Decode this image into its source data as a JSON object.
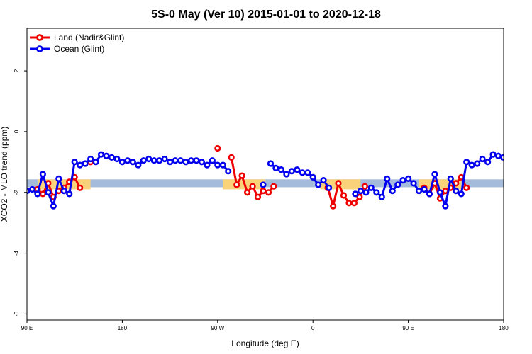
{
  "chart_data": {
    "type": "line",
    "title": "5S-0 May (Ver 10)   2015-01-01 to 2020-12-18",
    "xlabel": "Longitude (deg E)",
    "ylabel": "XCO2 - MLO trend (ppm)",
    "xlim": [
      90,
      540
    ],
    "ylim": [
      -6.2,
      3.4
    ],
    "x_ticks": [
      {
        "value": 90,
        "label": "90 E"
      },
      {
        "value": 180,
        "label": "180"
      },
      {
        "value": 270,
        "label": "90 W"
      },
      {
        "value": 360,
        "label": "0"
      },
      {
        "value": 450,
        "label": "90 E"
      },
      {
        "value": 540,
        "label": "180"
      }
    ],
    "y_ticks": [
      {
        "value": 2,
        "label": "2"
      },
      {
        "value": 0,
        "label": "0"
      },
      {
        "value": -2,
        "label": "-2"
      },
      {
        "value": -4,
        "label": "-4"
      },
      {
        "value": -6,
        "label": "-6"
      }
    ],
    "bands": [
      {
        "name": "ocean-band",
        "color": "#a4bbdc",
        "y_range": [
          -1.83,
          -1.57
        ],
        "x_range": [
          90,
          540
        ]
      },
      {
        "name": "land-band-1",
        "color": "#f9d27a",
        "y_range": [
          -1.9,
          -1.57
        ],
        "x_range": [
          100,
          150
        ]
      },
      {
        "name": "land-band-2",
        "color": "#f9d27a",
        "y_range": [
          -1.9,
          -1.57
        ],
        "x_range": [
          275,
          315
        ]
      },
      {
        "name": "land-band-3",
        "color": "#f9d27a",
        "y_range": [
          -1.9,
          -1.57
        ],
        "x_range": [
          367,
          405
        ]
      },
      {
        "name": "land-band-4",
        "color": "#f9d27a",
        "y_range": [
          -1.9,
          -1.57
        ],
        "x_range": [
          460,
          500
        ]
      }
    ],
    "legend_position": "top-left",
    "series": [
      {
        "name": "Land (Nadir&Glint)",
        "color": "#ee0000",
        "segments": [
          [
            [
              100,
              -1.9
            ],
            [
              105,
              -2.05
            ],
            [
              110,
              -1.7
            ],
            [
              115,
              -2.15
            ],
            [
              120,
              -1.95
            ],
            [
              125,
              -1.85
            ],
            [
              130,
              -1.65
            ],
            [
              135,
              -1.5
            ],
            [
              140,
              -1.85
            ]
          ],
          [
            [
              150,
              -1.0
            ]
          ],
          [
            [
              270,
              -0.55
            ]
          ],
          [
            [
              283,
              -0.85
            ],
            [
              288,
              -1.75
            ],
            [
              293,
              -1.45
            ],
            [
              298,
              -2.0
            ],
            [
              303,
              -1.8
            ],
            [
              308,
              -2.15
            ],
            [
              313,
              -1.95
            ],
            [
              318,
              -2.0
            ],
            [
              323,
              -1.8
            ]
          ],
          [
            [
              374,
              -1.85
            ],
            [
              379,
              -2.45
            ],
            [
              384,
              -1.7
            ],
            [
              389,
              -2.1
            ],
            [
              394,
              -2.35
            ],
            [
              399,
              -2.35
            ],
            [
              404,
              -2.15
            ],
            [
              409,
              -1.8
            ]
          ],
          [
            [
              465,
              -1.85
            ],
            [
              470,
              -2.05
            ],
            [
              475,
              -1.7
            ],
            [
              480,
              -2.2
            ],
            [
              485,
              -1.95
            ],
            [
              490,
              -1.85
            ],
            [
              495,
              -1.7
            ],
            [
              500,
              -1.5
            ],
            [
              505,
              -1.85
            ]
          ],
          [
            [
              515,
              -1.05
            ]
          ]
        ]
      },
      {
        "name": "Ocean (Glint)",
        "color": "#0000ee",
        "segments": [
          [
            [
              90,
              -1.95
            ],
            [
              95,
              -1.9
            ],
            [
              100,
              -2.05
            ],
            [
              105,
              -1.4
            ],
            [
              110,
              -2.0
            ],
            [
              115,
              -2.45
            ],
            [
              120,
              -1.55
            ],
            [
              125,
              -1.95
            ],
            [
              130,
              -2.05
            ],
            [
              135,
              -1.0
            ],
            [
              140,
              -1.1
            ],
            [
              145,
              -1.05
            ],
            [
              150,
              -0.9
            ],
            [
              155,
              -1.0
            ],
            [
              160,
              -0.75
            ],
            [
              165,
              -0.8
            ],
            [
              170,
              -0.85
            ],
            [
              175,
              -0.9
            ],
            [
              180,
              -1.0
            ],
            [
              185,
              -0.95
            ],
            [
              190,
              -1.0
            ],
            [
              195,
              -1.1
            ],
            [
              200,
              -0.95
            ],
            [
              205,
              -0.9
            ],
            [
              210,
              -0.95
            ],
            [
              215,
              -0.95
            ],
            [
              220,
              -0.9
            ],
            [
              225,
              -1.0
            ],
            [
              230,
              -0.95
            ],
            [
              235,
              -0.95
            ],
            [
              240,
              -1.0
            ],
            [
              245,
              -0.95
            ],
            [
              250,
              -0.95
            ],
            [
              255,
              -1.0
            ],
            [
              260,
              -1.1
            ],
            [
              265,
              -0.95
            ],
            [
              270,
              -1.1
            ],
            [
              275,
              -1.1
            ],
            [
              280,
              -1.3
            ]
          ],
          [
            [
              313,
              -1.75
            ]
          ],
          [
            [
              320,
              -1.05
            ],
            [
              325,
              -1.2
            ],
            [
              330,
              -1.25
            ],
            [
              335,
              -1.4
            ],
            [
              340,
              -1.3
            ],
            [
              345,
              -1.25
            ],
            [
              350,
              -1.35
            ],
            [
              355,
              -1.35
            ],
            [
              360,
              -1.5
            ],
            [
              365,
              -1.75
            ],
            [
              370,
              -1.6
            ],
            [
              375,
              -1.85
            ]
          ],
          [
            [
              400,
              -2.05
            ],
            [
              405,
              -1.95
            ],
            [
              410,
              -2.0
            ],
            [
              415,
              -1.85
            ],
            [
              420,
              -2.0
            ],
            [
              425,
              -2.15
            ],
            [
              430,
              -1.55
            ],
            [
              435,
              -1.95
            ],
            [
              440,
              -1.75
            ],
            [
              445,
              -1.6
            ],
            [
              450,
              -1.55
            ],
            [
              455,
              -1.7
            ],
            [
              460,
              -1.95
            ],
            [
              465,
              -1.9
            ],
            [
              470,
              -2.05
            ],
            [
              475,
              -1.4
            ],
            [
              480,
              -2.0
            ],
            [
              485,
              -2.45
            ],
            [
              490,
              -1.55
            ],
            [
              495,
              -1.95
            ],
            [
              500,
              -2.05
            ],
            [
              505,
              -1.0
            ],
            [
              510,
              -1.1
            ],
            [
              515,
              -1.05
            ],
            [
              520,
              -0.9
            ],
            [
              525,
              -1.0
            ],
            [
              530,
              -0.75
            ],
            [
              535,
              -0.8
            ],
            [
              540,
              -0.85
            ],
            [
              545,
              -0.9
            ]
          ]
        ]
      }
    ]
  }
}
